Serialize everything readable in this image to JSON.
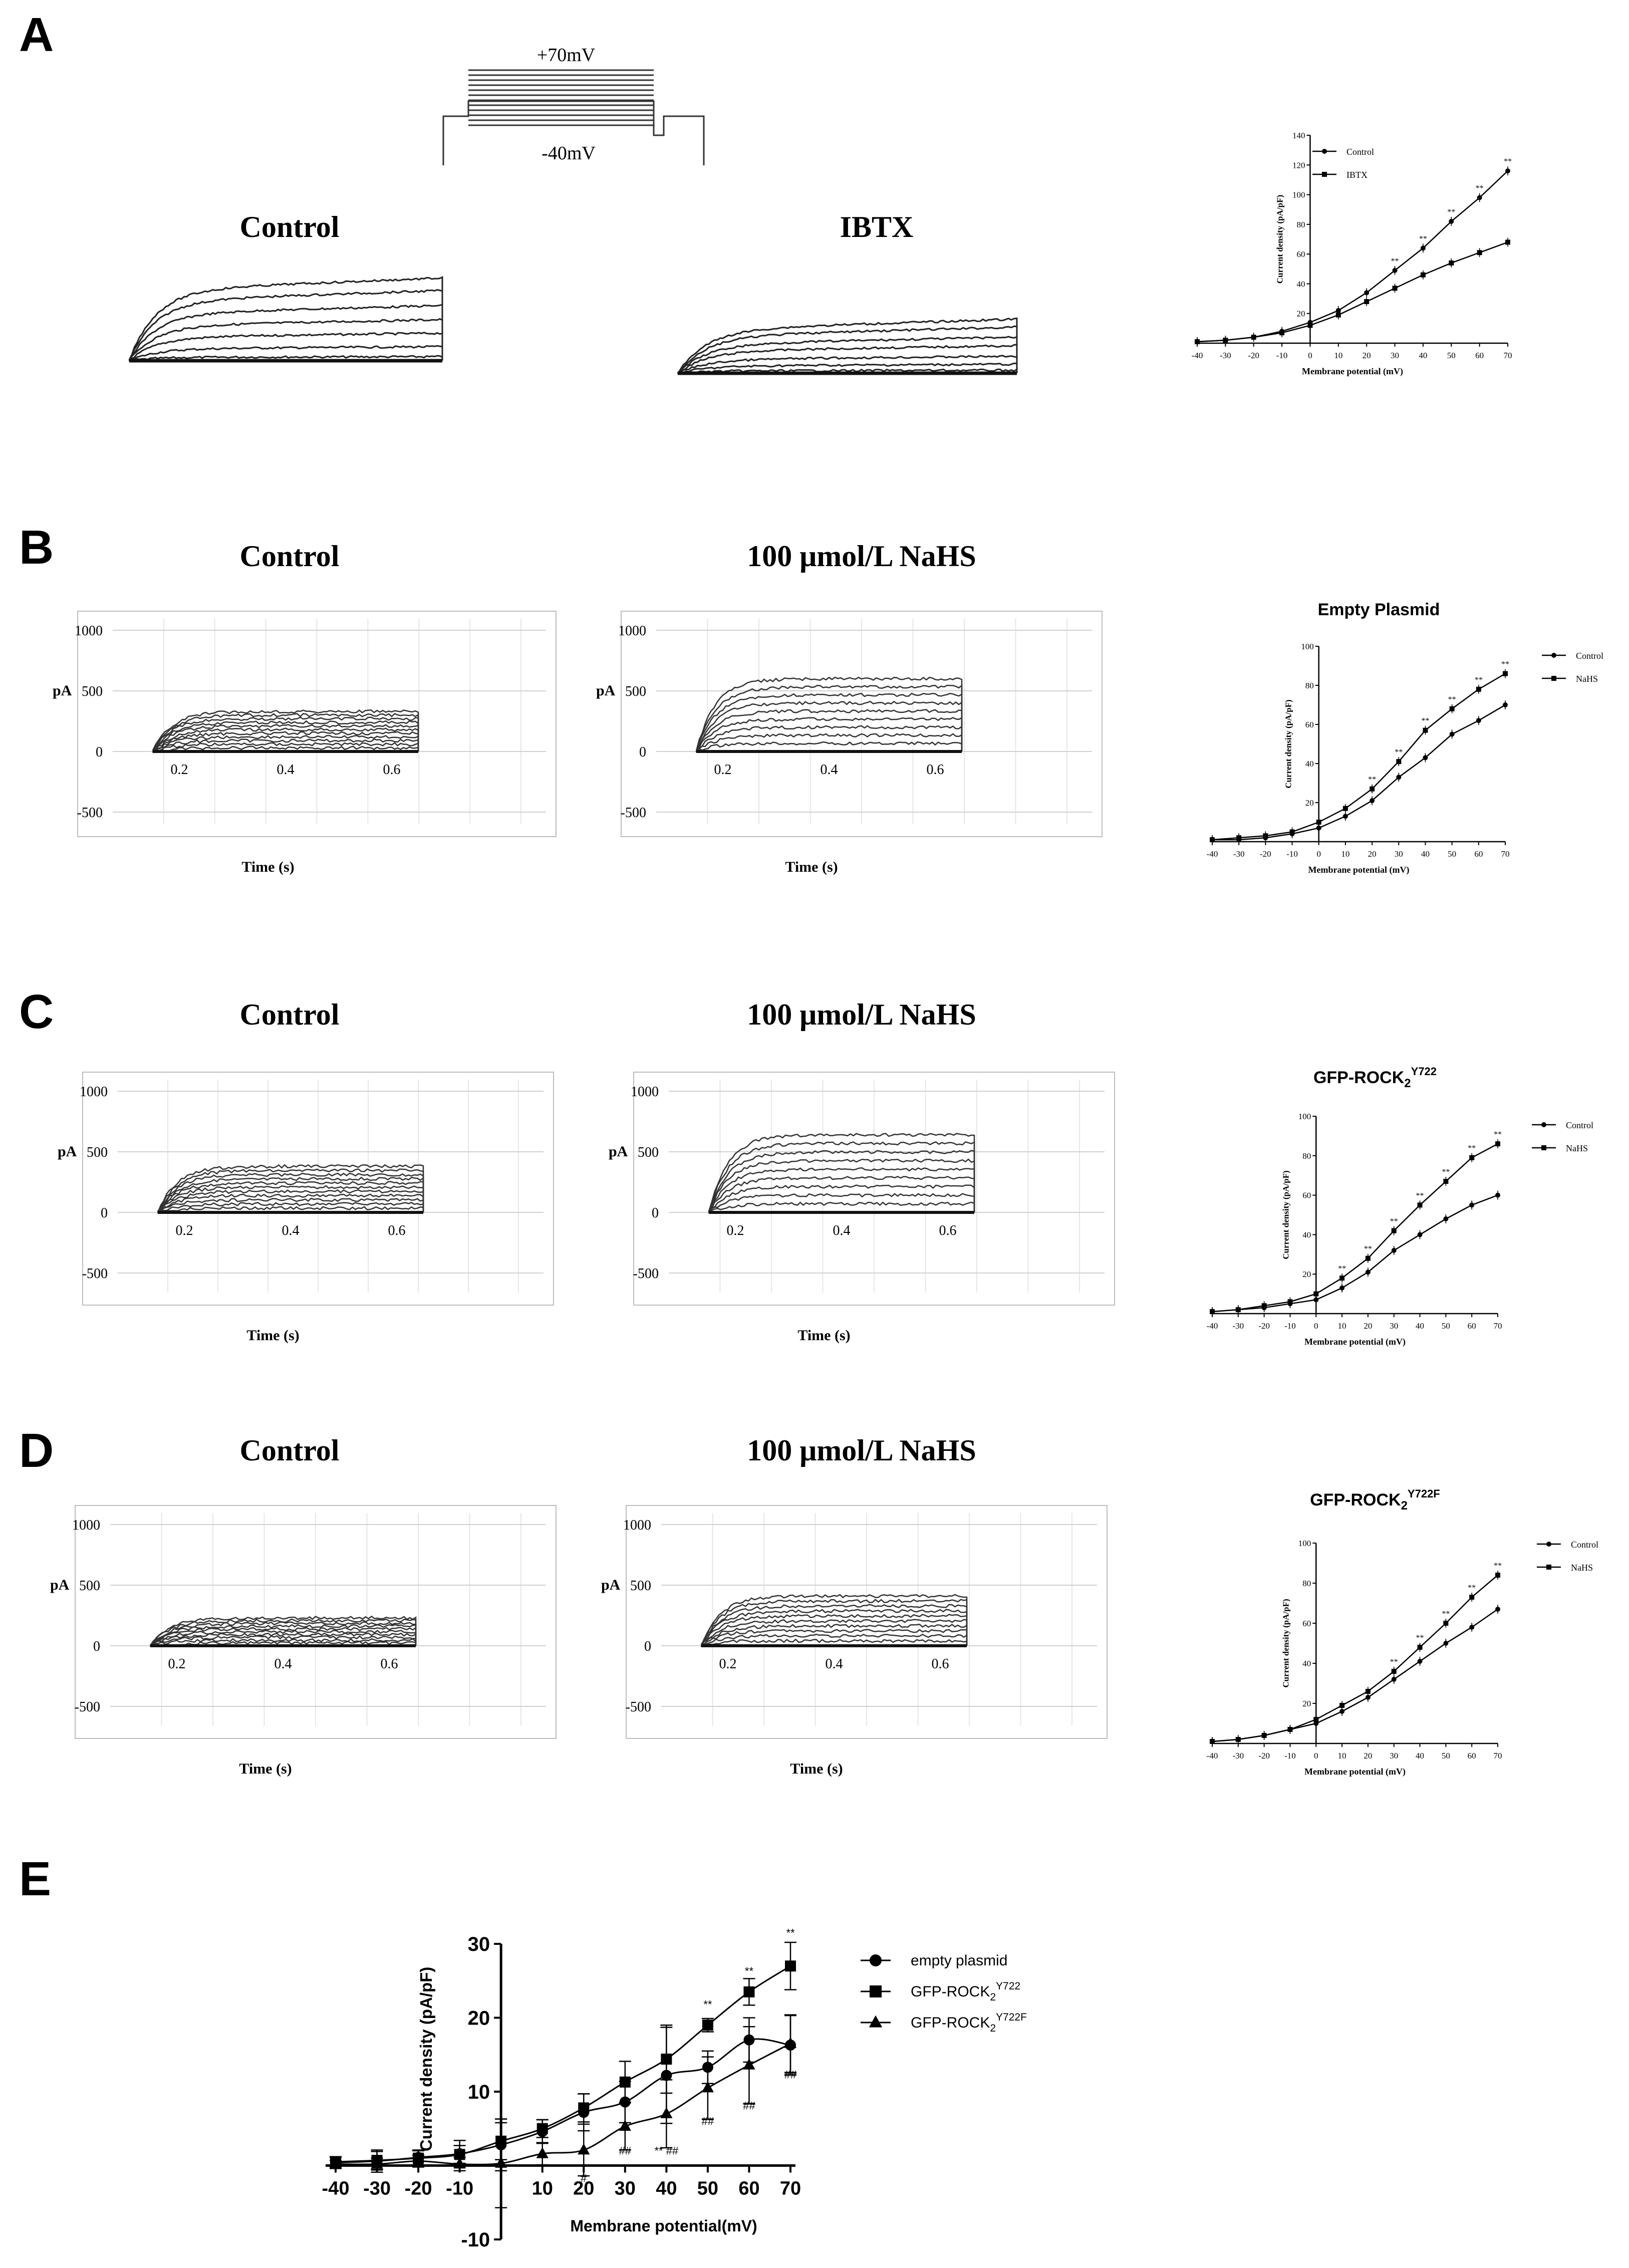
{
  "panels": {
    "A": {
      "letter": "A",
      "protocol": {
        "top_label": "+70mV",
        "bottom_label": "-40mV"
      },
      "trace_titles": [
        "Control",
        "IBTX"
      ]
    },
    "B": {
      "letter": "B",
      "trace_titles": [
        "Control",
        "100 μmol/L NaHS"
      ]
    },
    "C": {
      "letter": "C",
      "trace_titles": [
        "Control",
        "100 μmol/L NaHS"
      ]
    },
    "D": {
      "letter": "D",
      "trace_titles": [
        "Control",
        "100 μmol/L NaHS"
      ]
    },
    "E": {
      "letter": "E"
    }
  },
  "trace_axes": {
    "y_ticks": [
      "1000",
      "500",
      "0",
      "-500"
    ],
    "x_ticks": [
      "0.2",
      "0.4",
      "0.6"
    ],
    "ylabel": "pA",
    "xlabel": "Time  (s)"
  },
  "iv_axes": {
    "xlabel": "Membrane potential (mV)",
    "ylabel": "Current density (pA/pF)",
    "sig_mark": "**"
  },
  "chart_data": [
    {
      "id": "A-iv",
      "type": "line",
      "title": "",
      "xlabel": "Membrane potential (mV)",
      "ylabel": "Current density (pA/pF)",
      "xlim": [
        -40,
        70
      ],
      "ylim": [
        0,
        140
      ],
      "x": [
        -40,
        -30,
        -20,
        -10,
        0,
        10,
        20,
        30,
        40,
        50,
        60,
        70
      ],
      "y_ticks": [
        0,
        20,
        40,
        60,
        80,
        100,
        120,
        140
      ],
      "series": [
        {
          "name": "Control",
          "values": [
            1,
            2,
            4,
            8,
            14,
            22,
            34,
            49,
            64,
            82,
            98,
            116
          ]
        },
        {
          "name": "IBTX",
          "values": [
            1,
            2,
            4,
            7,
            12,
            19,
            28,
            37,
            46,
            54,
            61,
            68
          ]
        }
      ],
      "significance": {
        "x": [
          30,
          40,
          50,
          60,
          70
        ],
        "label": "**"
      },
      "legend": "top-left"
    },
    {
      "id": "B-iv",
      "type": "line",
      "title": "Empty Plasmid",
      "xlabel": "Membrane potential (mV)",
      "ylabel": "Current density (pA/pF)",
      "xlim": [
        -40,
        70
      ],
      "ylim": [
        0,
        100
      ],
      "x": [
        -40,
        -30,
        -20,
        -10,
        0,
        10,
        20,
        30,
        40,
        50,
        60,
        70
      ],
      "y_ticks": [
        0,
        20,
        40,
        60,
        80,
        100
      ],
      "series": [
        {
          "name": "Control",
          "values": [
            1,
            1,
            2,
            4,
            7,
            13,
            21,
            33,
            43,
            55,
            62,
            70
          ]
        },
        {
          "name": "NaHS",
          "values": [
            1,
            2,
            3,
            5,
            10,
            17,
            27,
            41,
            57,
            68,
            78,
            86
          ]
        }
      ],
      "significance": {
        "x": [
          20,
          30,
          40,
          50,
          60,
          70
        ],
        "label": "**"
      },
      "legend": "top-right"
    },
    {
      "id": "C-iv",
      "type": "line",
      "title": "GFP-ROCK2Y722",
      "xlabel": "Membrane potential (mV)",
      "ylabel": "Current density (pA/pF)",
      "xlim": [
        -40,
        70
      ],
      "ylim": [
        0,
        100
      ],
      "x": [
        -40,
        -30,
        -20,
        -10,
        0,
        10,
        20,
        30,
        40,
        50,
        60,
        70
      ],
      "y_ticks": [
        0,
        20,
        40,
        60,
        80,
        100
      ],
      "series": [
        {
          "name": "Control",
          "values": [
            1,
            2,
            3,
            5,
            7,
            13,
            21,
            32,
            40,
            48,
            55,
            60
          ]
        },
        {
          "name": "NaHS",
          "values": [
            1,
            2,
            4,
            6,
            10,
            18,
            28,
            42,
            55,
            67,
            79,
            86
          ]
        }
      ],
      "significance": {
        "x": [
          10,
          20,
          30,
          40,
          50,
          60,
          70
        ],
        "label": "**"
      },
      "legend": "top-right"
    },
    {
      "id": "D-iv",
      "type": "line",
      "title": "GFP-ROCK2Y722F",
      "xlabel": "Membrane potential (mV)",
      "ylabel": "Current density (pA/pF)",
      "xlim": [
        -40,
        70
      ],
      "ylim": [
        0,
        100
      ],
      "x": [
        -40,
        -30,
        -20,
        -10,
        0,
        10,
        20,
        30,
        40,
        50,
        60,
        70
      ],
      "y_ticks": [
        0,
        20,
        40,
        60,
        80,
        100
      ],
      "series": [
        {
          "name": "Control",
          "values": [
            1,
            2,
            4,
            7,
            10,
            16,
            23,
            32,
            41,
            50,
            58,
            67
          ]
        },
        {
          "name": "NaHS",
          "values": [
            1,
            2,
            4,
            7,
            12,
            19,
            26,
            36,
            48,
            60,
            73,
            84
          ]
        }
      ],
      "significance": {
        "x": [
          30,
          40,
          50,
          60,
          70
        ],
        "label": "**"
      },
      "legend": "top-right"
    },
    {
      "id": "E-iv",
      "type": "line",
      "title": "",
      "xlabel": "Membrane potential(mV)",
      "ylabel": "Current density (pA/pF)",
      "xlim": [
        -40,
        70
      ],
      "ylim": [
        -10,
        30
      ],
      "x": [
        -40,
        -30,
        -20,
        -10,
        0,
        10,
        20,
        30,
        40,
        50,
        60,
        70
      ],
      "x_ticks": [
        -40,
        -30,
        -20,
        -10,
        10,
        20,
        30,
        40,
        50,
        60,
        70
      ],
      "y_ticks": [
        -10,
        10,
        20,
        30
      ],
      "series": [
        {
          "name": "empty plasmid",
          "marker": "circle",
          "values": [
            0.4,
            0.6,
            1.1,
            1.6,
            2.8,
            4.6,
            7.2,
            8.6,
            12.2,
            13.3,
            17.0,
            16.3
          ],
          "err": [
            0.8,
            1.5,
            1.0,
            1.8,
            3.5,
            1.6,
            2.5,
            2.8,
            6.5,
            2.2,
            3.0,
            4.0
          ]
        },
        {
          "name": "GFP-ROCK2Y722",
          "sub": "2",
          "sup": "Y722",
          "marker": "square",
          "values": [
            0.5,
            0.7,
            1.0,
            1.5,
            3.3,
            5.0,
            7.8,
            11.3,
            14.4,
            19.0,
            23.5,
            27.0
          ],
          "err": [
            0.6,
            1.2,
            1.0,
            1.2,
            2.5,
            1.2,
            1.9,
            2.8,
            4.6,
            0.9,
            1.8,
            3.2
          ]
        },
        {
          "name": "GFP-ROCK2Y722F",
          "sub": "2",
          "sup": "Y722F",
          "marker": "triangle",
          "values": [
            0.2,
            0.2,
            0.6,
            0.2,
            0.3,
            1.6,
            2.1,
            5.3,
            7.0,
            10.5,
            13.6,
            16.5
          ],
          "err": [
            0.5,
            0.8,
            0.8,
            0.9,
            6.0,
            1.5,
            3.5,
            3.2,
            4.6,
            4.2,
            5.2,
            3.9
          ]
        }
      ],
      "annotations": [
        {
          "x": 50,
          "y": 21.3,
          "text": "**"
        },
        {
          "x": 60,
          "y": 25.8,
          "text": "**"
        },
        {
          "x": 70,
          "y": 31.0,
          "text": "**"
        },
        {
          "x": 30,
          "y": 1.5,
          "text": "##"
        },
        {
          "x": 40,
          "y": 1.5,
          "text": "** ##"
        },
        {
          "x": 50,
          "y": 5.5,
          "text": "##"
        },
        {
          "x": 60,
          "y": 7.6,
          "text": "##"
        },
        {
          "x": 70,
          "y": 11.8,
          "text": "##"
        },
        {
          "x": 20,
          "y": -2.2,
          "text": "#"
        }
      ],
      "legend": "right"
    }
  ]
}
